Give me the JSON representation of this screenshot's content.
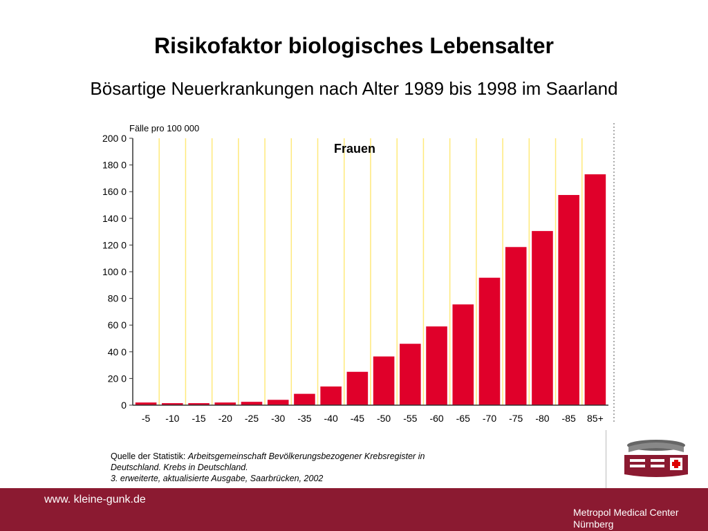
{
  "header": {
    "title": "Risikofaktor biologisches Lebensalter",
    "subtitle": "Bösartige Neuerkrankungen nach Alter 1989 bis 1998 im Saarland"
  },
  "chart_data": {
    "type": "bar",
    "ylabel": "Fälle pro 100 000",
    "series_label": "Frauen",
    "categories": [
      "-5",
      "-10",
      "-15",
      "-20",
      "-25",
      "-30",
      "-35",
      "-40",
      "-45",
      "-50",
      "-55",
      "-60",
      "-65",
      "-70",
      "-75",
      "-80",
      "-85",
      "85+"
    ],
    "values": [
      20,
      15,
      15,
      20,
      25,
      40,
      85,
      140,
      250,
      365,
      460,
      590,
      755,
      955,
      1185,
      1305,
      1575,
      1730
    ],
    "ylim": [
      0,
      2000
    ],
    "yticks": [
      "0",
      "20 0",
      "40 0",
      "60 0",
      "80 0",
      "100 0",
      "120 0",
      "140 0",
      "160 0",
      "180 0",
      "200 0"
    ],
    "bar_color": "#e0002a",
    "gridline_color": "#ffe97a",
    "grid": true
  },
  "source": {
    "label": "Quelle der Statistik:",
    "line1": "Arbeitsgemeinschaft Bevölkerungsbezogener Krebsregister in",
    "line2": "Deutschland. Krebs in Deutschland.",
    "line3": "3. erweiterte, aktualisierte Ausgabe, Saarbrücken, 2002"
  },
  "footer": {
    "url": "www. kleine-gunk.de",
    "org_line1": "Metropol Medical Center",
    "org_line2": "Nürnberg"
  },
  "colors": {
    "footer_bg": "#8b1a31",
    "accent": "#e0002a"
  },
  "logo": {
    "icon": "hospital-building-icon"
  }
}
